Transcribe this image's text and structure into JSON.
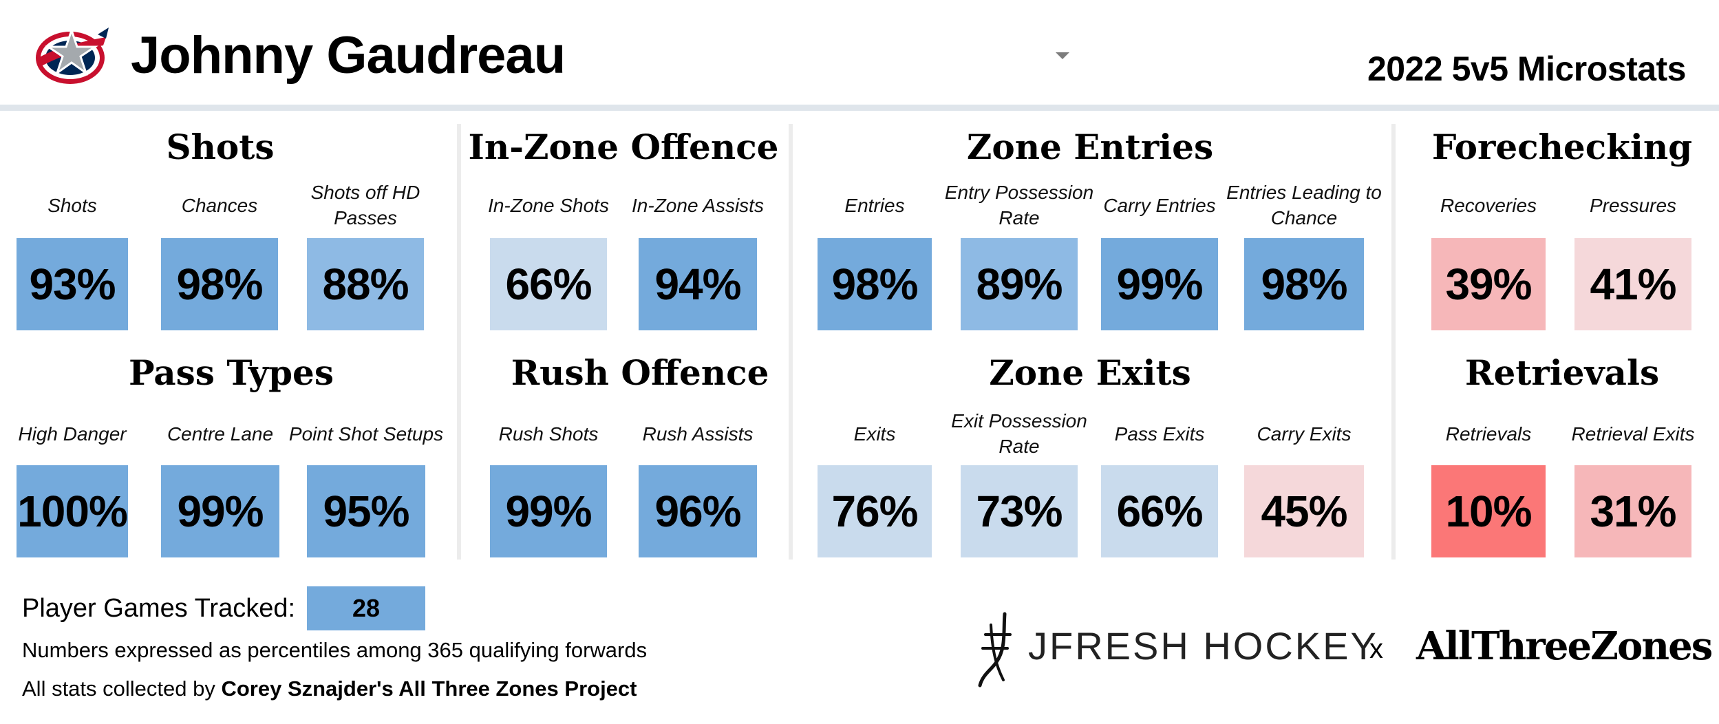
{
  "header": {
    "player_name": "Johnny Gaudreau",
    "season_title": "2022 5v5 Microstats",
    "logo_icon": "blue-jackets-logo-icon"
  },
  "colors": {
    "tile_strong_blue": "#74aadc",
    "tile_mid_blue": "#8ebae4",
    "tile_light_blue": "#c9dbed",
    "tile_strong_red": "#fb7777",
    "tile_light_red": "#f6b7b9",
    "tile_faint_red": "#f5d8da",
    "separator": "#ececec",
    "header_rule": "#dfe5eb"
  },
  "chart_data": {
    "type": "table",
    "unit": "percentile",
    "sections": [
      {
        "title": "Shots",
        "metrics": [
          {
            "label": "Shots",
            "value": "93%"
          },
          {
            "label": "Chances",
            "value": "98%"
          },
          {
            "label": "Shots off HD Passes",
            "value": "88%"
          }
        ]
      },
      {
        "title": "In-Zone Offence",
        "metrics": [
          {
            "label": "In-Zone Shots",
            "value": "66%"
          },
          {
            "label": "In-Zone Assists",
            "value": "94%"
          }
        ]
      },
      {
        "title": "Zone Entries",
        "metrics": [
          {
            "label": "Entries",
            "value": "98%"
          },
          {
            "label": "Entry Possession Rate",
            "value": "89%"
          },
          {
            "label": "Carry Entries",
            "value": "99%"
          },
          {
            "label": "Entries Leading to Chance",
            "value": "98%"
          }
        ]
      },
      {
        "title": "Forechecking",
        "metrics": [
          {
            "label": "Recoveries",
            "value": "39%"
          },
          {
            "label": "Pressures",
            "value": "41%"
          }
        ]
      },
      {
        "title": "Pass Types",
        "metrics": [
          {
            "label": "High Danger",
            "value": "100%"
          },
          {
            "label": "Centre Lane",
            "value": "99%"
          },
          {
            "label": "Point Shot Setups",
            "value": "95%"
          }
        ]
      },
      {
        "title": "Rush Offence",
        "metrics": [
          {
            "label": "Rush Shots",
            "value": "99%"
          },
          {
            "label": "Rush Assists",
            "value": "96%"
          }
        ]
      },
      {
        "title": "Zone Exits",
        "metrics": [
          {
            "label": "Exits",
            "value": "76%"
          },
          {
            "label": "Exit Possession Rate",
            "value": "73%"
          },
          {
            "label": "Pass Exits",
            "value": "66%"
          },
          {
            "label": "Carry Exits",
            "value": "45%"
          }
        ]
      },
      {
        "title": "Retrievals",
        "metrics": [
          {
            "label": "Retrievals",
            "value": "10%"
          },
          {
            "label": "Retrieval Exits",
            "value": "31%"
          }
        ]
      }
    ]
  },
  "footer": {
    "games_label": "Player Games Tracked:",
    "games_value": "28",
    "note": "Numbers expressed as percentiles among 365 qualifying forwards",
    "credit_prefix": "All stats collected by ",
    "credit_name": "Corey Sznajder's All Three Zones Project",
    "brand_left": "JFRESH HOCKEY",
    "brand_sep": "x",
    "brand_right": "AllThreeZones"
  }
}
